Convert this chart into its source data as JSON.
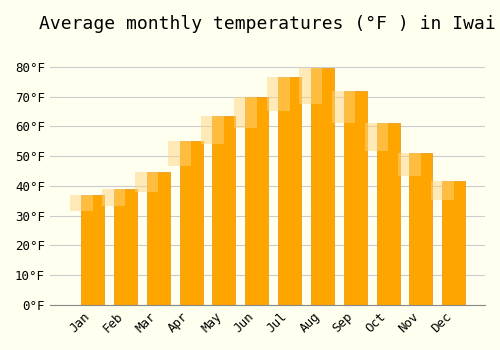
{
  "title": "Average monthly temperatures (°F ) in Iwai",
  "months": [
    "Jan",
    "Feb",
    "Mar",
    "Apr",
    "May",
    "Jun",
    "Jul",
    "Aug",
    "Sep",
    "Oct",
    "Nov",
    "Dec"
  ],
  "values": [
    37,
    39,
    44.5,
    55,
    63.5,
    70,
    76.5,
    79.5,
    72,
    61,
    51,
    41.5
  ],
  "bar_color": "#FFA500",
  "bar_edge_color": "#E8900A",
  "background_color": "#FFFFF0",
  "grid_color": "#CCCCCC",
  "ylim": [
    0,
    88
  ],
  "yticks": [
    0,
    10,
    20,
    30,
    40,
    50,
    60,
    70,
    80
  ],
  "ytick_labels": [
    "0°F",
    "10°F",
    "20°F",
    "30°F",
    "40°F",
    "50°F",
    "60°F",
    "70°F",
    "80°F"
  ],
  "title_fontsize": 13,
  "tick_fontsize": 9,
  "font_family": "monospace"
}
